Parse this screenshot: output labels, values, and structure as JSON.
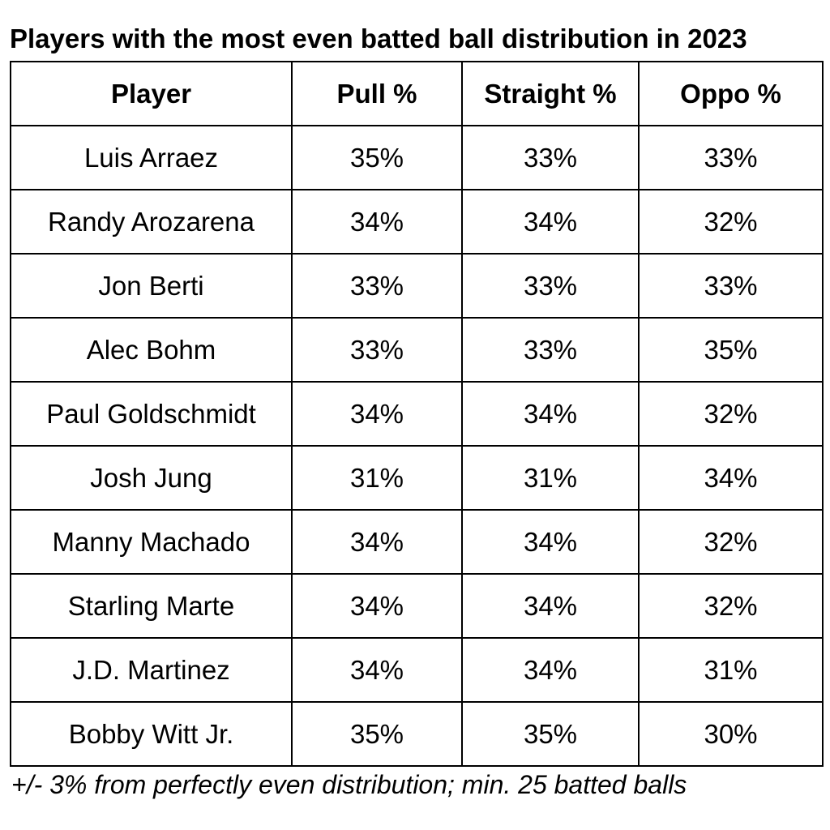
{
  "title": "Players with the most even batted ball distribution in 2023",
  "table": {
    "headers": [
      "Player",
      "Pull %",
      "Straight %",
      "Oppo %"
    ],
    "rows": [
      [
        "Luis Arraez",
        "35%",
        "33%",
        "33%"
      ],
      [
        "Randy Arozarena",
        "34%",
        "34%",
        "32%"
      ],
      [
        "Jon Berti",
        "33%",
        "33%",
        "33%"
      ],
      [
        "Alec Bohm",
        "33%",
        "33%",
        "35%"
      ],
      [
        "Paul Goldschmidt",
        "34%",
        "34%",
        "32%"
      ],
      [
        "Josh Jung",
        "31%",
        "31%",
        "34%"
      ],
      [
        "Manny Machado",
        "34%",
        "34%",
        "32%"
      ],
      [
        "Starling Marte",
        "34%",
        "34%",
        "32%"
      ],
      [
        "J.D. Martinez",
        "34%",
        "34%",
        "31%"
      ],
      [
        "Bobby Witt Jr.",
        "35%",
        "35%",
        "30%"
      ]
    ]
  },
  "footnote": "+/- 3% from perfectly even distribution; min. 25 batted balls",
  "colors": {
    "text": "#000000",
    "border": "#000000",
    "background": "#ffffff"
  }
}
